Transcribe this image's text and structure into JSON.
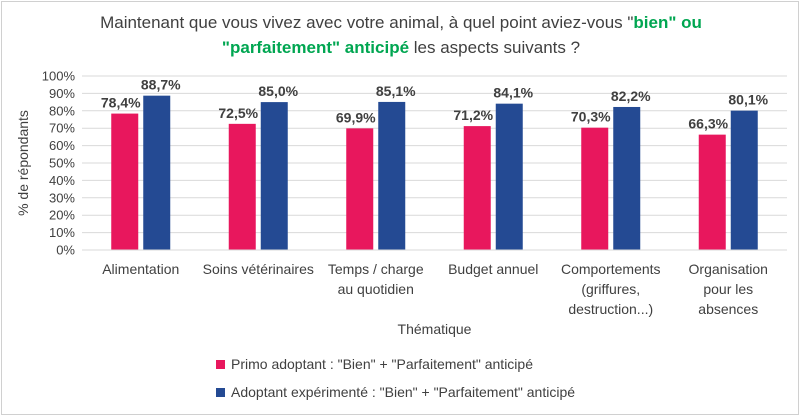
{
  "title": {
    "part1": "Maintenant que vous vivez avec votre animal, à quel point aviez-vous \"",
    "highlight1": "bien\" ou",
    "highlight2": "\"parfaitement\" anticipé",
    "part2": " les aspects suivants ?"
  },
  "colors": {
    "series1": "#e8175d",
    "series2": "#244a93",
    "grid": "#d9d9d9",
    "title_highlight": "#00a651"
  },
  "chart_data": {
    "type": "bar",
    "xlabel": "Thématique",
    "ylabel": "% de répondants",
    "ylim": [
      0,
      100
    ],
    "yticks": [
      "0%",
      "10%",
      "20%",
      "30%",
      "40%",
      "50%",
      "60%",
      "70%",
      "80%",
      "90%",
      "100%"
    ],
    "grid": true,
    "legend_position": "bottom",
    "categories": [
      [
        "Alimentation"
      ],
      [
        "Soins vétérinaires"
      ],
      [
        "Temps / charge",
        "au quotidien"
      ],
      [
        "Budget annuel"
      ],
      [
        "Comportements",
        "(griffures,",
        "destruction...)"
      ],
      [
        "Organisation",
        "pour les",
        "absences"
      ]
    ],
    "series": [
      {
        "name": "Primo adoptant : \"Bien\" + \"Parfaitement\" anticipé",
        "values": [
          78.4,
          72.5,
          69.9,
          71.2,
          70.3,
          66.3
        ],
        "labels": [
          "78,4%",
          "72,5%",
          "69,9%",
          "71,2%",
          "70,3%",
          "66,3%"
        ]
      },
      {
        "name": "Adoptant expérimenté : \"Bien\" + \"Parfaitement\" anticipé",
        "values": [
          88.7,
          85.0,
          85.1,
          84.1,
          82.2,
          80.1
        ],
        "labels": [
          "88,7%",
          "85,0%",
          "85,1%",
          "84,1%",
          "82,2%",
          "80,1%"
        ]
      }
    ]
  }
}
